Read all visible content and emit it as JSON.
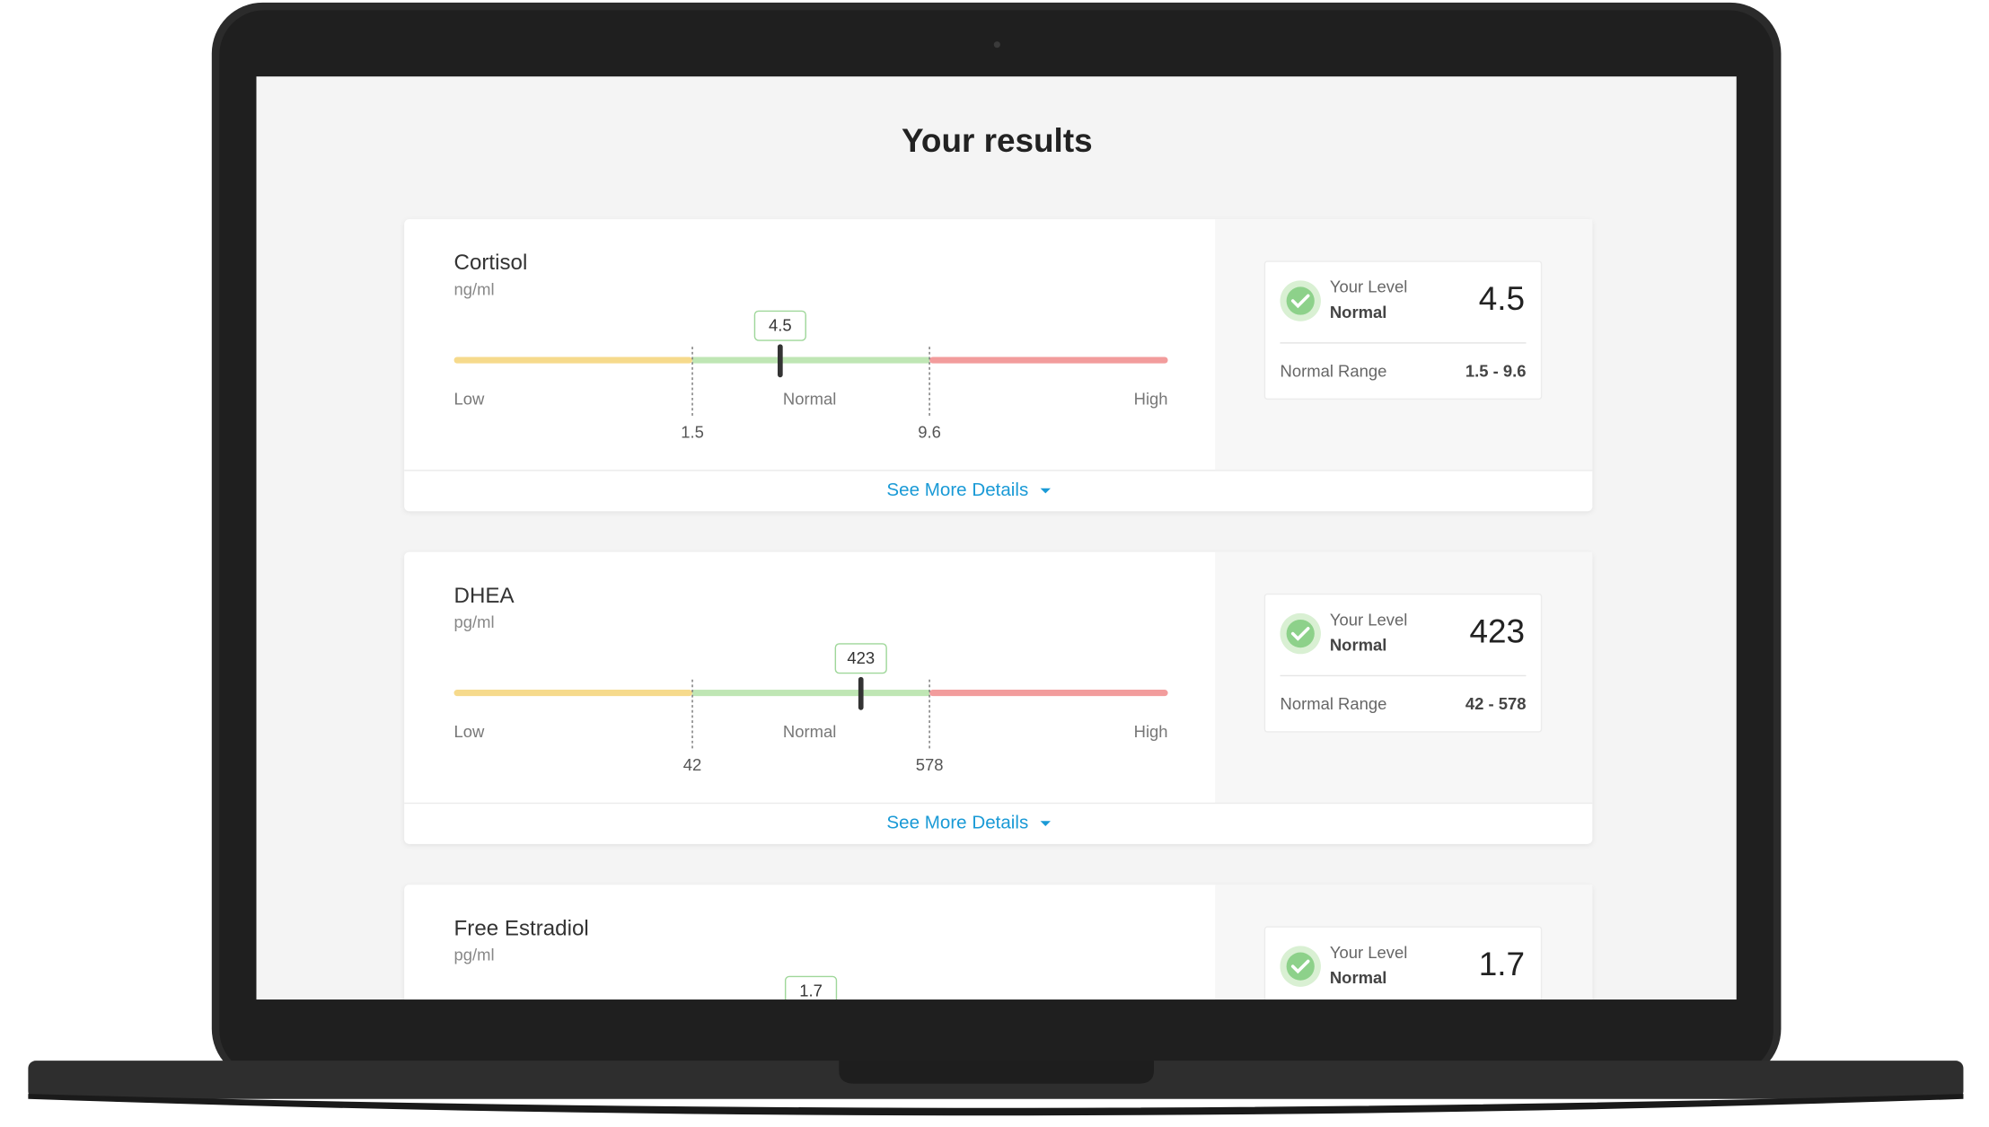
{
  "header": {
    "title": "Your results"
  },
  "labels": {
    "low": "Low",
    "normal": "Normal",
    "high": "High",
    "details": "See More Details",
    "your_level": "Your Level",
    "normal_range": "Normal Range"
  },
  "results": [
    {
      "name": "Cortisol",
      "unit": "ng/ml",
      "value": 4.5,
      "status": "Normal",
      "range_low": 1.5,
      "range_high": 9.6,
      "range_label": "1.5 - 9.6"
    },
    {
      "name": "DHEA",
      "unit": "pg/ml",
      "value": 423,
      "status": "Normal",
      "range_low": 42,
      "range_high": 578,
      "range_label": "42 - 578"
    },
    {
      "name": "Free Estradiol",
      "unit": "pg/ml",
      "value": 1.7,
      "status": "Normal"
    }
  ]
}
